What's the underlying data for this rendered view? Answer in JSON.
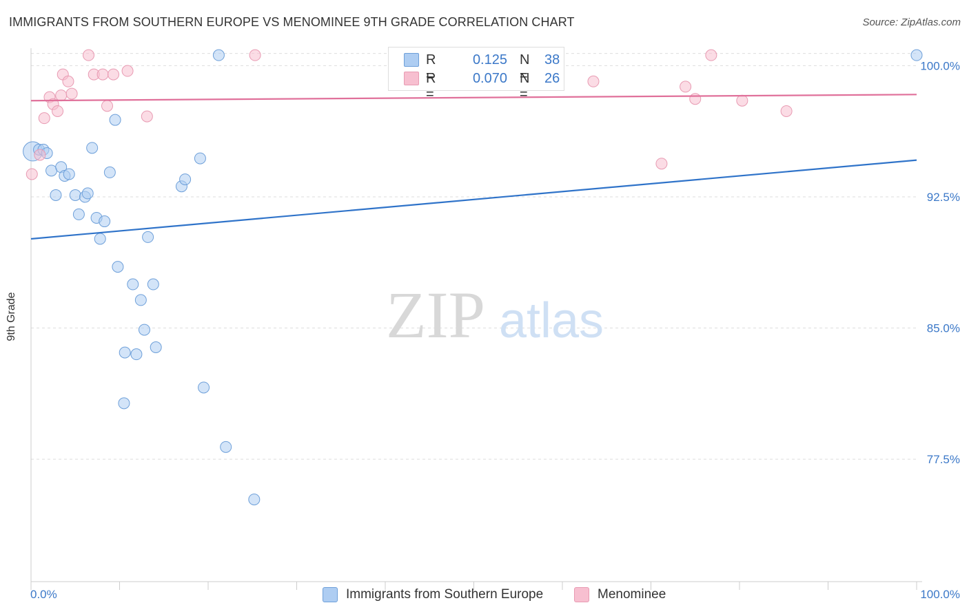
{
  "title": "IMMIGRANTS FROM SOUTHERN EUROPE VS MENOMINEE 9TH GRADE CORRELATION CHART",
  "source": "Source: ZipAtlas.com",
  "watermark": {
    "zip": "ZIP",
    "atlas": "atlas"
  },
  "legend_top": {
    "rows": [
      {
        "r_key": "R =",
        "r_value": "0.125",
        "n_key": "N =",
        "n_value": "38"
      },
      {
        "r_key": "R =",
        "r_value": "0.070",
        "n_key": "N =",
        "n_value": "26"
      }
    ]
  },
  "legend_bottom": {
    "items": [
      {
        "label": "Immigrants from Southern Europe"
      },
      {
        "label": "Menominee"
      }
    ]
  },
  "colors": {
    "blue_fill": "#aecdf2",
    "blue_stroke": "#6d9fd9",
    "blue_line": "#2f73c9",
    "blue_text": "#3b78c8",
    "pink_fill": "#f7bfd0",
    "pink_stroke": "#e89ab2",
    "pink_line": "#e0709a",
    "grid": "#dddddd",
    "axis": "#cccccc"
  },
  "chart_data": {
    "type": "scatter",
    "title": "IMMIGRANTS FROM SOUTHERN EUROPE VS MENOMINEE 9TH GRADE CORRELATION CHART",
    "xlabel": "",
    "ylabel": "9th Grade",
    "xlim": [
      0,
      100
    ],
    "ylim": [
      70.5,
      101.0
    ],
    "x_tick_labels": [
      "0.0%",
      "100.0%"
    ],
    "y_ticks": [
      {
        "value": 100.0,
        "label": "100.0%"
      },
      {
        "value": 92.5,
        "label": "92.5%"
      },
      {
        "value": 85.0,
        "label": "85.0%"
      },
      {
        "value": 77.5,
        "label": "77.5%"
      }
    ],
    "series": [
      {
        "name": "Immigrants from Southern Europe",
        "color": "blue",
        "R": 0.125,
        "N": 38,
        "trend": {
          "x": [
            0,
            100
          ],
          "y": [
            90.1,
            94.6
          ]
        },
        "points": [
          {
            "x": 0.2,
            "y": 95.1,
            "big": true
          },
          {
            "x": 0.9,
            "y": 95.2
          },
          {
            "x": 1.4,
            "y": 95.2
          },
          {
            "x": 1.8,
            "y": 95.0
          },
          {
            "x": 2.3,
            "y": 94.0
          },
          {
            "x": 3.4,
            "y": 94.2
          },
          {
            "x": 3.8,
            "y": 93.7
          },
          {
            "x": 4.3,
            "y": 93.8
          },
          {
            "x": 2.8,
            "y": 92.6
          },
          {
            "x": 5.0,
            "y": 92.6
          },
          {
            "x": 6.1,
            "y": 92.5
          },
          {
            "x": 6.4,
            "y": 92.7
          },
          {
            "x": 5.4,
            "y": 91.5
          },
          {
            "x": 7.4,
            "y": 91.3
          },
          {
            "x": 8.3,
            "y": 91.1
          },
          {
            "x": 7.8,
            "y": 90.1
          },
          {
            "x": 6.9,
            "y": 95.3
          },
          {
            "x": 9.5,
            "y": 96.9
          },
          {
            "x": 8.9,
            "y": 93.9
          },
          {
            "x": 13.2,
            "y": 90.2
          },
          {
            "x": 9.8,
            "y": 88.5
          },
          {
            "x": 11.5,
            "y": 87.5
          },
          {
            "x": 13.8,
            "y": 87.5
          },
          {
            "x": 12.4,
            "y": 86.6
          },
          {
            "x": 12.8,
            "y": 84.9
          },
          {
            "x": 10.6,
            "y": 83.6
          },
          {
            "x": 11.9,
            "y": 83.5
          },
          {
            "x": 14.1,
            "y": 83.9
          },
          {
            "x": 10.5,
            "y": 80.7
          },
          {
            "x": 17.0,
            "y": 93.1
          },
          {
            "x": 17.4,
            "y": 93.5
          },
          {
            "x": 19.1,
            "y": 94.7
          },
          {
            "x": 19.5,
            "y": 81.6
          },
          {
            "x": 21.2,
            "y": 100.6
          },
          {
            "x": 22.0,
            "y": 78.2
          },
          {
            "x": 25.2,
            "y": 75.2
          },
          {
            "x": 100.0,
            "y": 100.6
          }
        ]
      },
      {
        "name": "Menominee",
        "color": "pink",
        "R": 0.07,
        "N": 26,
        "trend": {
          "x": [
            0,
            100
          ],
          "y": [
            98.0,
            98.35
          ]
        },
        "points": [
          {
            "x": 0.1,
            "y": 93.8
          },
          {
            "x": 1.0,
            "y": 94.9
          },
          {
            "x": 1.5,
            "y": 97.0
          },
          {
            "x": 2.1,
            "y": 98.2
          },
          {
            "x": 2.5,
            "y": 97.8
          },
          {
            "x": 3.0,
            "y": 97.4
          },
          {
            "x": 3.4,
            "y": 98.3
          },
          {
            "x": 3.6,
            "y": 99.5
          },
          {
            "x": 4.2,
            "y": 99.1
          },
          {
            "x": 4.6,
            "y": 98.4
          },
          {
            "x": 6.5,
            "y": 100.6
          },
          {
            "x": 7.1,
            "y": 99.5
          },
          {
            "x": 8.1,
            "y": 99.5
          },
          {
            "x": 8.6,
            "y": 97.7
          },
          {
            "x": 9.3,
            "y": 99.5
          },
          {
            "x": 10.9,
            "y": 99.7
          },
          {
            "x": 13.1,
            "y": 97.1
          },
          {
            "x": 25.3,
            "y": 100.6
          },
          {
            "x": 63.5,
            "y": 99.1
          },
          {
            "x": 71.2,
            "y": 94.4
          },
          {
            "x": 73.9,
            "y": 98.8
          },
          {
            "x": 75.0,
            "y": 98.1
          },
          {
            "x": 76.8,
            "y": 100.6
          },
          {
            "x": 80.3,
            "y": 98.0
          },
          {
            "x": 85.3,
            "y": 97.4
          }
        ]
      }
    ]
  }
}
